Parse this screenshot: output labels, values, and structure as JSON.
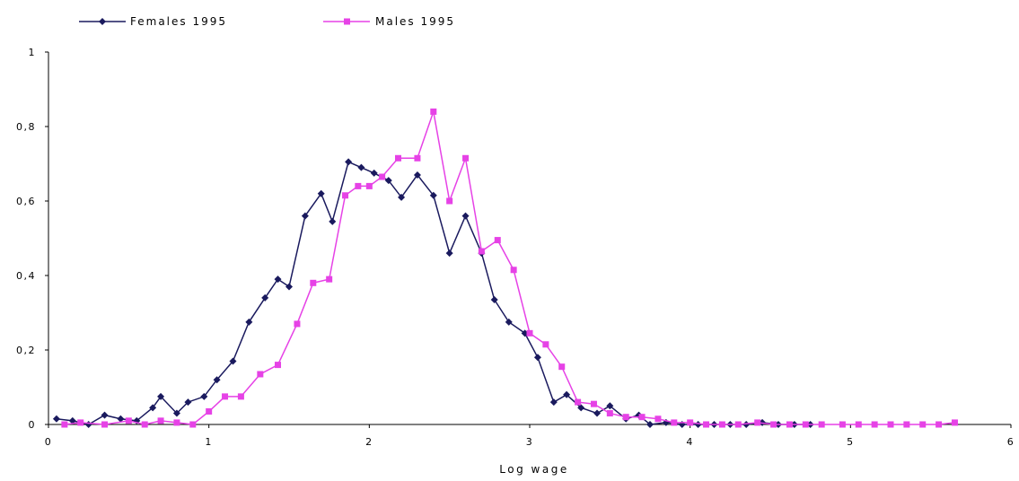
{
  "chart_data": {
    "type": "line",
    "xlabel": "Log wage",
    "ylabel": "",
    "xlim": [
      0,
      6
    ],
    "ylim": [
      0,
      1
    ],
    "x_ticks": [
      "0",
      "1",
      "2",
      "3",
      "4",
      "5",
      "6"
    ],
    "y_ticks": [
      "0",
      "0,2",
      "0,4",
      "0,6",
      "0,8",
      "1"
    ],
    "grid": false,
    "legend_position": "top-left",
    "series": [
      {
        "name": "Females 1995",
        "color": "#1a1a5e",
        "marker": "diamond",
        "points": [
          [
            0.05,
            0.015
          ],
          [
            0.15,
            0.01
          ],
          [
            0.25,
            0.0
          ],
          [
            0.35,
            0.025
          ],
          [
            0.45,
            0.015
          ],
          [
            0.55,
            0.01
          ],
          [
            0.65,
            0.045
          ],
          [
            0.7,
            0.075
          ],
          [
            0.8,
            0.03
          ],
          [
            0.87,
            0.06
          ],
          [
            0.97,
            0.075
          ],
          [
            1.05,
            0.12
          ],
          [
            1.15,
            0.17
          ],
          [
            1.25,
            0.275
          ],
          [
            1.35,
            0.34
          ],
          [
            1.43,
            0.39
          ],
          [
            1.5,
            0.37
          ],
          [
            1.6,
            0.56
          ],
          [
            1.7,
            0.62
          ],
          [
            1.77,
            0.545
          ],
          [
            1.87,
            0.705
          ],
          [
            1.95,
            0.69
          ],
          [
            2.03,
            0.675
          ],
          [
            2.12,
            0.655
          ],
          [
            2.2,
            0.61
          ],
          [
            2.3,
            0.67
          ],
          [
            2.4,
            0.615
          ],
          [
            2.5,
            0.46
          ],
          [
            2.6,
            0.56
          ],
          [
            2.7,
            0.46
          ],
          [
            2.78,
            0.335
          ],
          [
            2.87,
            0.275
          ],
          [
            2.97,
            0.245
          ],
          [
            3.05,
            0.18
          ],
          [
            3.15,
            0.06
          ],
          [
            3.23,
            0.08
          ],
          [
            3.32,
            0.045
          ],
          [
            3.42,
            0.03
          ],
          [
            3.5,
            0.05
          ],
          [
            3.6,
            0.015
          ],
          [
            3.68,
            0.025
          ],
          [
            3.75,
            0.0
          ],
          [
            3.85,
            0.005
          ],
          [
            3.95,
            0.0
          ],
          [
            4.05,
            0.0
          ],
          [
            4.15,
            0.0
          ],
          [
            4.25,
            0.0
          ],
          [
            4.35,
            0.0
          ],
          [
            4.45,
            0.005
          ],
          [
            4.55,
            0.0
          ],
          [
            4.65,
            0.0
          ],
          [
            4.75,
            0.0
          ]
        ]
      },
      {
        "name": "Males 1995",
        "color": "#e642e6",
        "marker": "square",
        "points": [
          [
            0.1,
            0.0
          ],
          [
            0.2,
            0.005
          ],
          [
            0.35,
            0.0
          ],
          [
            0.5,
            0.01
          ],
          [
            0.6,
            0.0
          ],
          [
            0.7,
            0.01
          ],
          [
            0.8,
            0.005
          ],
          [
            0.9,
            0.0
          ],
          [
            1.0,
            0.035
          ],
          [
            1.1,
            0.075
          ],
          [
            1.2,
            0.075
          ],
          [
            1.32,
            0.135
          ],
          [
            1.43,
            0.16
          ],
          [
            1.55,
            0.27
          ],
          [
            1.65,
            0.38
          ],
          [
            1.75,
            0.39
          ],
          [
            1.85,
            0.615
          ],
          [
            1.93,
            0.64
          ],
          [
            2.0,
            0.64
          ],
          [
            2.08,
            0.665
          ],
          [
            2.18,
            0.715
          ],
          [
            2.3,
            0.715
          ],
          [
            2.4,
            0.84
          ],
          [
            2.5,
            0.6
          ],
          [
            2.6,
            0.715
          ],
          [
            2.7,
            0.465
          ],
          [
            2.8,
            0.495
          ],
          [
            2.9,
            0.415
          ],
          [
            3.0,
            0.245
          ],
          [
            3.1,
            0.215
          ],
          [
            3.2,
            0.155
          ],
          [
            3.3,
            0.06
          ],
          [
            3.4,
            0.055
          ],
          [
            3.5,
            0.03
          ],
          [
            3.6,
            0.02
          ],
          [
            3.7,
            0.02
          ],
          [
            3.8,
            0.015
          ],
          [
            3.9,
            0.005
          ],
          [
            4.0,
            0.005
          ],
          [
            4.1,
            0.0
          ],
          [
            4.2,
            0.0
          ],
          [
            4.3,
            0.0
          ],
          [
            4.42,
            0.005
          ],
          [
            4.52,
            0.0
          ],
          [
            4.62,
            0.0
          ],
          [
            4.72,
            0.0
          ],
          [
            4.82,
            0.0
          ],
          [
            4.95,
            0.0
          ],
          [
            5.05,
            0.0
          ],
          [
            5.15,
            0.0
          ],
          [
            5.25,
            0.0
          ],
          [
            5.35,
            0.0
          ],
          [
            5.45,
            0.0
          ],
          [
            5.55,
            0.0
          ],
          [
            5.65,
            0.005
          ]
        ]
      }
    ]
  }
}
